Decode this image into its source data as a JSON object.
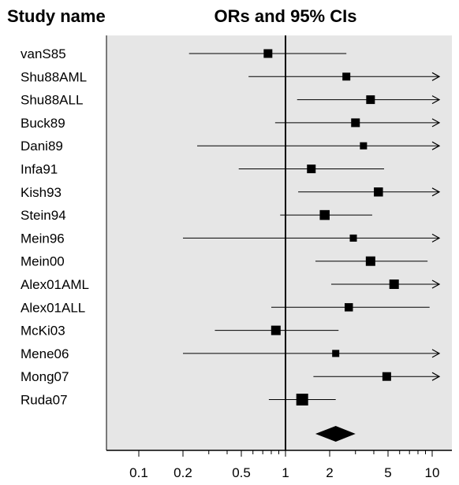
{
  "chart_data": {
    "type": "forest",
    "column_header": "Study name",
    "title": "ORs and 95% CIs",
    "x_scale": "log",
    "xlim": [
      0.07,
      12
    ],
    "x_ticks": [
      {
        "value": 0.1,
        "label": "0.1"
      },
      {
        "value": 0.2,
        "label": "0.2"
      },
      {
        "value": 0.5,
        "label": "0.5"
      },
      {
        "value": 1,
        "label": "1"
      },
      {
        "value": 2,
        "label": "2"
      },
      {
        "value": 5,
        "label": "5"
      },
      {
        "value": 10,
        "label": "10"
      }
    ],
    "reference_line": 1,
    "studies": [
      {
        "name": "vanS85",
        "or": 0.76,
        "lower": 0.22,
        "upper": 2.6,
        "upper_arrow": false,
        "weight": 1.0
      },
      {
        "name": "Shu88AML",
        "or": 2.6,
        "lower": 0.56,
        "upper": 12,
        "upper_arrow": true,
        "weight": 0.8
      },
      {
        "name": "Shu88ALL",
        "or": 3.8,
        "lower": 1.2,
        "upper": 12,
        "upper_arrow": true,
        "weight": 1.0
      },
      {
        "name": "Buck89",
        "or": 3.0,
        "lower": 0.85,
        "upper": 12,
        "upper_arrow": true,
        "weight": 1.0
      },
      {
        "name": "Dani89",
        "or": 3.4,
        "lower": 0.25,
        "upper": 12,
        "upper_arrow": true,
        "weight": 0.6
      },
      {
        "name": "Infa91",
        "or": 1.5,
        "lower": 0.48,
        "upper": 4.7,
        "upper_arrow": false,
        "weight": 1.0
      },
      {
        "name": "Kish93",
        "or": 4.3,
        "lower": 1.22,
        "upper": 12,
        "upper_arrow": true,
        "weight": 1.1
      },
      {
        "name": "Stein94",
        "or": 1.85,
        "lower": 0.92,
        "upper": 3.9,
        "upper_arrow": false,
        "weight": 1.3
      },
      {
        "name": "Mein96",
        "or": 2.9,
        "lower": 0.2,
        "upper": 12,
        "upper_arrow": true,
        "weight": 0.6
      },
      {
        "name": "Mein00",
        "or": 3.8,
        "lower": 1.6,
        "upper": 9.3,
        "upper_arrow": false,
        "weight": 1.2
      },
      {
        "name": "Alex01AML",
        "or": 5.5,
        "lower": 2.05,
        "upper": 12,
        "upper_arrow": true,
        "weight": 1.2
      },
      {
        "name": "Alex01ALL",
        "or": 2.7,
        "lower": 0.8,
        "upper": 9.6,
        "upper_arrow": false,
        "weight": 0.9
      },
      {
        "name": "McKi03",
        "or": 0.86,
        "lower": 0.33,
        "upper": 2.3,
        "upper_arrow": false,
        "weight": 1.2
      },
      {
        "name": "Mene06",
        "or": 2.2,
        "lower": 0.2,
        "upper": 12,
        "upper_arrow": true,
        "weight": 0.6
      },
      {
        "name": "Mong07",
        "or": 4.9,
        "lower": 1.55,
        "upper": 12,
        "upper_arrow": true,
        "weight": 1.0
      },
      {
        "name": "Ruda07",
        "or": 1.3,
        "lower": 0.77,
        "upper": 2.2,
        "upper_arrow": false,
        "weight": 1.8
      }
    ],
    "summary": {
      "or": 2.2,
      "lower": 1.6,
      "upper": 3.0
    },
    "colors": {
      "plot_bg": "#e6e6e6",
      "marks": "#000000"
    }
  }
}
